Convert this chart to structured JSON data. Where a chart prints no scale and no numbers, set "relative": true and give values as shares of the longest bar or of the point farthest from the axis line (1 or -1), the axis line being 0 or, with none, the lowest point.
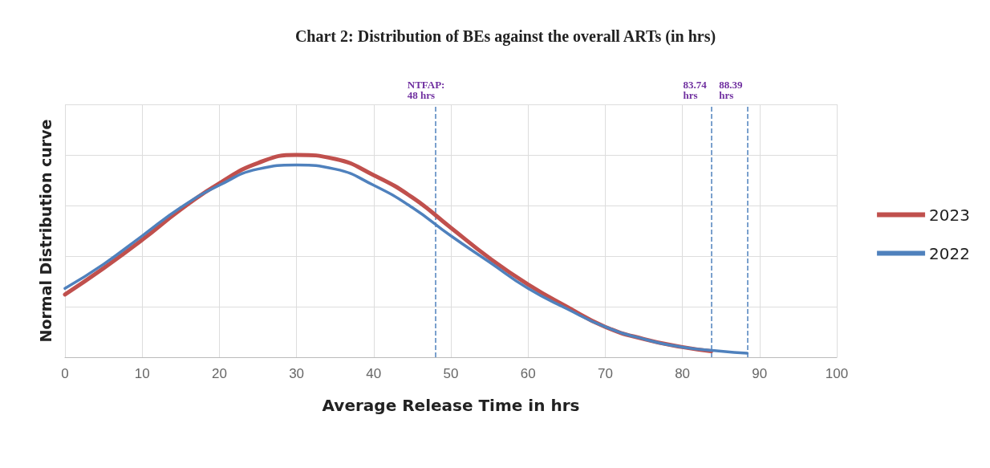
{
  "chart_data": {
    "type": "line",
    "title": "Chart 2: Distribution of BEs against the overall ARTs (in hrs)",
    "xlabel": "Average Release Time in hrs",
    "ylabel": "Normal Distribution curve",
    "relative": true,
    "xlim": [
      0,
      100
    ],
    "xticks": [
      0,
      10,
      20,
      30,
      40,
      50,
      60,
      70,
      80,
      90,
      100
    ],
    "grid": true,
    "legend": "right",
    "marker": "none",
    "line_style": "solid",
    "series": [
      {
        "name": "2023",
        "color": "#c0504d",
        "x": [
          0,
          5,
          10,
          15,
          20,
          25,
          30,
          35,
          40,
          45,
          50,
          55,
          60,
          65,
          70,
          75,
          80,
          83.74
        ],
        "values": [
          0.31,
          0.44,
          0.58,
          0.73,
          0.86,
          0.96,
          1.0,
          0.98,
          0.9,
          0.79,
          0.64,
          0.49,
          0.36,
          0.25,
          0.15,
          0.09,
          0.05,
          0.03
        ]
      },
      {
        "name": "2022",
        "color": "#4f81bd",
        "x": [
          0,
          5,
          10,
          15,
          20,
          25,
          30,
          35,
          40,
          45,
          50,
          55,
          60,
          65,
          70,
          75,
          80,
          85,
          88.39
        ],
        "values": [
          0.34,
          0.46,
          0.6,
          0.74,
          0.85,
          0.93,
          0.95,
          0.93,
          0.85,
          0.74,
          0.6,
          0.47,
          0.34,
          0.24,
          0.15,
          0.09,
          0.05,
          0.03,
          0.02
        ]
      }
    ],
    "ref_lines": [
      {
        "axis": "x",
        "value": 48,
        "label": "NTFAP:\n48 hrs",
        "color": "#4f81bd",
        "line_style": "dashed"
      },
      {
        "axis": "x",
        "value": 83.74,
        "label": "83.74\nhrs",
        "color": "#4f81bd",
        "line_style": "dashed"
      },
      {
        "axis": "x",
        "value": 88.39,
        "label": "88.39\nhrs",
        "color": "#4f81bd",
        "line_style": "dashed"
      }
    ]
  }
}
